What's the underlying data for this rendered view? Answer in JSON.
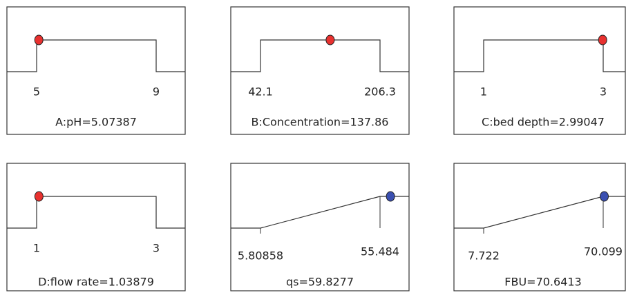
{
  "panels": [
    {
      "kind": "factor",
      "low": 5,
      "high": 9,
      "value": 5.07387,
      "color": "#e8312f",
      "title": "A:pH=5.07387"
    },
    {
      "kind": "factor",
      "low": 42.1,
      "high": 206.3,
      "value": 137.86,
      "color": "#e8312f",
      "title": "B:Concentration=137.86"
    },
    {
      "kind": "factor",
      "low": 1,
      "high": 3,
      "value": 2.99047,
      "color": "#e8312f",
      "title": "C:bed depth=2.99047"
    },
    {
      "kind": "factor",
      "low": 1,
      "high": 3,
      "value": 1.03879,
      "color": "#e8312f",
      "title": "D:flow rate=1.03879"
    },
    {
      "kind": "response",
      "low": 5.80858,
      "high": 55.484,
      "value": 59.8277,
      "color": "#3a4fb0",
      "title": "qs=59.8277"
    },
    {
      "kind": "response",
      "low": 7.722,
      "high": 70.099,
      "value": 70.6413,
      "color": "#3a4fb0",
      "title": "FBU=70.6413"
    }
  ]
}
